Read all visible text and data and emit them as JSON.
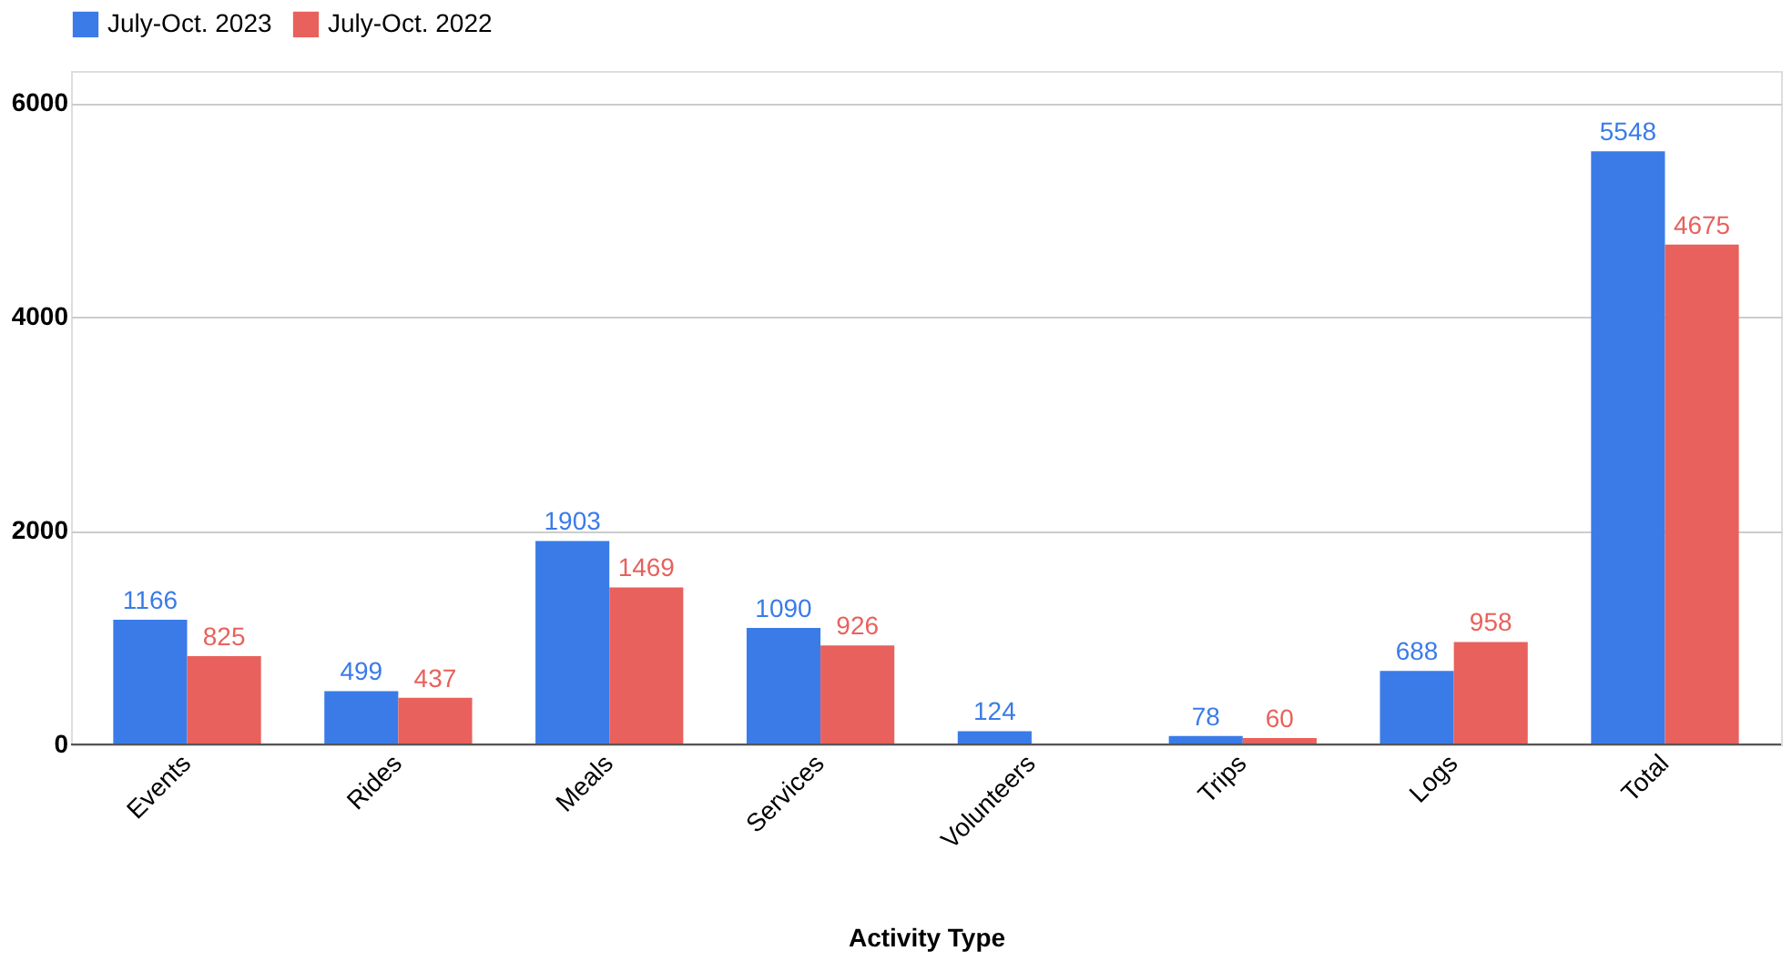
{
  "chart_data": {
    "type": "bar",
    "xlabel": "Activity Type",
    "categories": [
      "Events",
      "Rides",
      "Meals",
      "Services",
      "Volunteers",
      "Trips",
      "Logs",
      "Total"
    ],
    "series": [
      {
        "name": "July-Oct. 2023",
        "color": "#3a7be8",
        "values": [
          1166,
          499,
          1903,
          1090,
          124,
          78,
          688,
          5548
        ]
      },
      {
        "name": "July-Oct. 2022",
        "color": "#e8615c",
        "values": [
          825,
          437,
          1469,
          926,
          null,
          60,
          958,
          4675
        ]
      }
    ],
    "ylim": [
      0,
      6300
    ],
    "yticks": [
      0,
      2000,
      4000,
      6000
    ],
    "grid": "y",
    "legend": "top",
    "data_labels": true
  }
}
